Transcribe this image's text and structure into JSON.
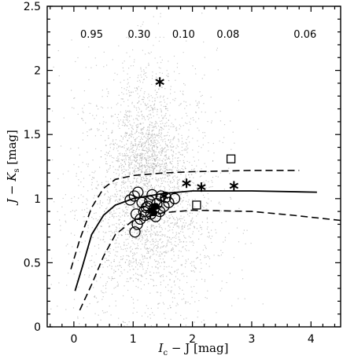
{
  "chart_data": {
    "type": "scatter",
    "xlabel": "I_c − J [mag]",
    "xlabel_parts": {
      "main": "I",
      "sub": "c",
      "rest": " − J [mag]"
    },
    "ylabel": "J − K_s [mag]",
    "ylabel_parts": {
      "main": "J − K",
      "sub": "s",
      "rest": " [mag]"
    },
    "xlim": [
      -0.45,
      4.5
    ],
    "ylim": [
      0,
      2.5
    ],
    "x_ticks": [
      0,
      1,
      2,
      3,
      4
    ],
    "y_ticks": [
      0,
      0.5,
      1,
      1.5,
      2,
      2.5
    ],
    "x_tick_labels": [
      "0",
      "1",
      "2",
      "3",
      "4"
    ],
    "y_tick_labels": [
      "0",
      "0.5",
      "1",
      "1.5",
      "2",
      "2.5"
    ],
    "top_annotations": [
      {
        "x": 0.3,
        "text": "0.95"
      },
      {
        "x": 1.1,
        "text": "0.30"
      },
      {
        "x": 1.85,
        "text": "0.10"
      },
      {
        "x": 2.6,
        "text": "0.08"
      },
      {
        "x": 3.9,
        "text": "0.06"
      }
    ],
    "background_cloud": {
      "description_colour": "#9a9a9a",
      "center": [
        1.2,
        0.95
      ],
      "spread": [
        0.6,
        0.35
      ]
    },
    "series": [
      {
        "marker": "solid-line",
        "values": [
          [
            0.02,
            0.28
          ],
          [
            0.15,
            0.48
          ],
          [
            0.3,
            0.72
          ],
          [
            0.5,
            0.87
          ],
          [
            0.7,
            0.95
          ],
          [
            1.0,
            1.0
          ],
          [
            1.5,
            1.04
          ],
          [
            2.0,
            1.06
          ],
          [
            3.0,
            1.06
          ],
          [
            4.1,
            1.05
          ]
        ]
      },
      {
        "marker": "dashed-line-upper",
        "values": [
          [
            -0.05,
            0.45
          ],
          [
            0.1,
            0.68
          ],
          [
            0.3,
            0.93
          ],
          [
            0.5,
            1.08
          ],
          [
            0.7,
            1.15
          ],
          [
            1.0,
            1.18
          ],
          [
            1.5,
            1.2
          ],
          [
            2.0,
            1.21
          ],
          [
            3.0,
            1.22
          ],
          [
            3.8,
            1.22
          ]
        ]
      },
      {
        "marker": "dashed-line-lower",
        "values": [
          [
            0.1,
            0.13
          ],
          [
            0.3,
            0.33
          ],
          [
            0.5,
            0.55
          ],
          [
            0.7,
            0.72
          ],
          [
            1.0,
            0.83
          ],
          [
            1.5,
            0.89
          ],
          [
            2.0,
            0.91
          ],
          [
            3.0,
            0.9
          ],
          [
            3.7,
            0.87
          ],
          [
            4.5,
            0.83
          ]
        ]
      },
      {
        "marker": "open-circle",
        "values": [
          [
            0.95,
            0.99
          ],
          [
            1.02,
            1.02
          ],
          [
            1.08,
            1.05
          ],
          [
            1.15,
            0.97
          ],
          [
            1.22,
            0.93
          ],
          [
            1.28,
            0.98
          ],
          [
            1.32,
            1.03
          ],
          [
            1.4,
            0.96
          ],
          [
            1.47,
            1.02
          ],
          [
            1.55,
            1.01
          ],
          [
            1.6,
            0.97
          ],
          [
            1.52,
            0.94
          ],
          [
            1.45,
            0.9
          ],
          [
            1.38,
            0.86
          ],
          [
            1.3,
            0.88
          ],
          [
            1.2,
            0.87
          ],
          [
            1.12,
            0.84
          ],
          [
            1.07,
            0.8
          ],
          [
            1.03,
            0.74
          ],
          [
            1.25,
            0.94
          ],
          [
            1.35,
            0.92
          ],
          [
            1.7,
            1.0
          ],
          [
            1.05,
            0.88
          ],
          [
            1.18,
            0.9
          ]
        ]
      },
      {
        "marker": "filled-circle",
        "values": [
          [
            1.32,
            0.91
          ],
          [
            1.38,
            0.94
          ],
          [
            1.35,
            0.89
          ]
        ]
      },
      {
        "marker": "asterisk",
        "values": [
          [
            1.45,
            1.91
          ],
          [
            1.9,
            1.12
          ],
          [
            2.15,
            1.09
          ],
          [
            2.7,
            1.1
          ],
          [
            1.52,
            1.02
          ]
        ]
      },
      {
        "marker": "open-square",
        "values": [
          [
            2.65,
            1.31
          ],
          [
            2.07,
            0.95
          ]
        ]
      }
    ]
  }
}
